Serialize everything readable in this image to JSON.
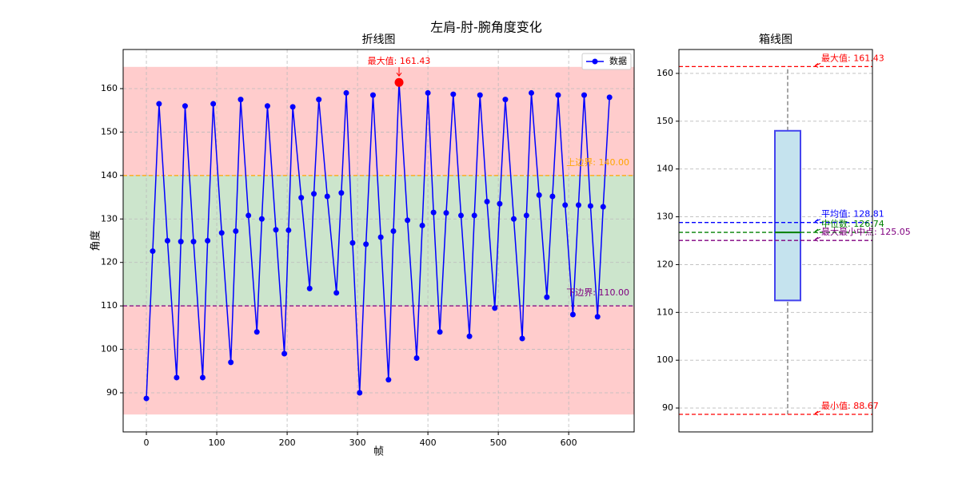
{
  "title": "左肩-肘-腕角度变化",
  "chart_data": [
    {
      "type": "line",
      "title": "折线图",
      "x_label": "帧",
      "y_label": "角度",
      "xlim": [
        -33,
        693
      ],
      "ylim": [
        81,
        169
      ],
      "xticks": [
        0,
        100,
        200,
        300,
        400,
        500,
        600
      ],
      "yticks": [
        90,
        100,
        110,
        120,
        130,
        140,
        150,
        160
      ],
      "grid": true,
      "legend": "upper right",
      "bands": [
        {
          "from": 85,
          "to": 110,
          "color": "#ffcccc"
        },
        {
          "from": 110,
          "to": 140,
          "color": "#cce5cc"
        },
        {
          "from": 140,
          "to": 165,
          "color": "#ffcccc"
        }
      ],
      "bounds": [
        {
          "label": "上边界: 140.00",
          "value": 140,
          "color": "orange"
        },
        {
          "label": "下边界: 110.00",
          "value": 110,
          "color": "purple"
        }
      ],
      "max_point": {
        "label": "最大值: 161.43",
        "x": 359,
        "value": 161.43,
        "color": "red"
      },
      "x": [
        0,
        9,
        18,
        30,
        43,
        49,
        55,
        67,
        80,
        87,
        95,
        107,
        120,
        127,
        134,
        145,
        157,
        164,
        172,
        184,
        196,
        202,
        208,
        220,
        232,
        238,
        245,
        257,
        270,
        277,
        284,
        293,
        303,
        312,
        322,
        333,
        344,
        351,
        359,
        371,
        384,
        392,
        400,
        408,
        417,
        426,
        436,
        447,
        459,
        466,
        474,
        484,
        495,
        502,
        510,
        522,
        534,
        540,
        547,
        558,
        569,
        577,
        585,
        595,
        606,
        614,
        622,
        631,
        641,
        649,
        658
      ],
      "series": [
        {
          "name": "数据",
          "color": "blue",
          "values": [
            88.7,
            122.6,
            156.5,
            125,
            93.5,
            124.8,
            156,
            124.8,
            93.5,
            125,
            156.5,
            126.8,
            97,
            127.2,
            157.5,
            130.8,
            104,
            130,
            156,
            127.5,
            99,
            127.4,
            155.8,
            134.9,
            114,
            135.8,
            157.5,
            135.2,
            113,
            136,
            159,
            124.5,
            90,
            124.2,
            158.5,
            125.8,
            93,
            127.2,
            161.43,
            129.7,
            98,
            128.5,
            159,
            131.5,
            104,
            131.4,
            158.7,
            130.8,
            103,
            130.8,
            158.5,
            134,
            109.5,
            133.5,
            157.5,
            130,
            102.5,
            130.8,
            159,
            135.5,
            112,
            135.2,
            158.5,
            133.2,
            108,
            133.2,
            158.5,
            133,
            107.5,
            132.8,
            158
          ]
        }
      ]
    },
    {
      "type": "box",
      "title": "箱线图",
      "ylim": [
        85,
        165
      ],
      "yticks": [
        90,
        100,
        110,
        120,
        130,
        140,
        150,
        160
      ],
      "grid": true,
      "min": 88.67,
      "q1": 112.5,
      "median": 126.74,
      "q3": 148,
      "max": 161.43,
      "box_color": "#4444ee",
      "box_fill": "#c5e3ee",
      "median_color": "green",
      "reference_lines": [
        {
          "label": "最大值: 161.43",
          "value": 161.43,
          "color": "red"
        },
        {
          "label": "平均值: 128.81",
          "value": 128.81,
          "color": "blue"
        },
        {
          "label": "中位数: 126.74",
          "value": 126.74,
          "color": "green"
        },
        {
          "label": "最大最小中点: 125.05",
          "value": 125.05,
          "color": "purple"
        },
        {
          "label": "最小值: 88.67",
          "value": 88.67,
          "color": "red"
        }
      ]
    }
  ]
}
